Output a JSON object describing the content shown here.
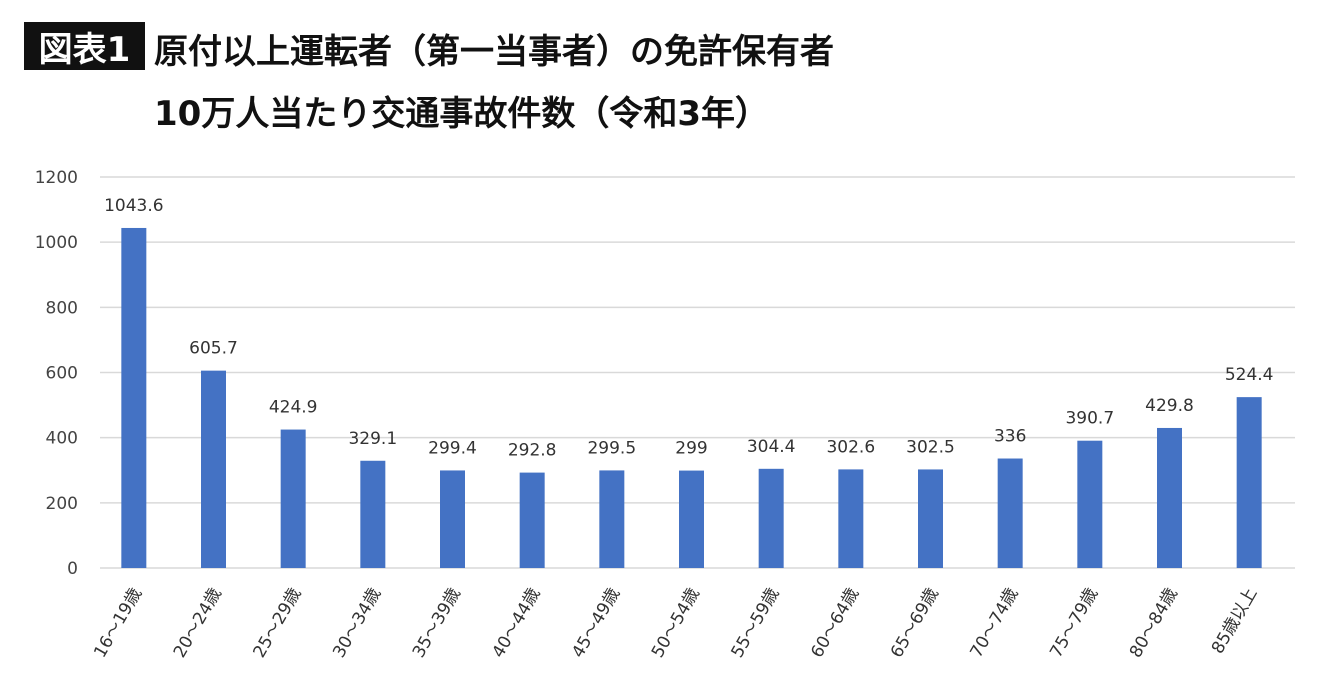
{
  "header": {
    "badge": "図表1",
    "title_line1": "原付以上運転者（第一当事者）の免許保有者",
    "title_line2": "10万人当たり交通事故件数（令和3年）"
  },
  "chart_data": {
    "type": "bar",
    "title": "原付以上運転者（第一当事者）の免許保有者 10万人当たり交通事故件数（令和3年）",
    "categories": [
      "16～19歳",
      "20～24歳",
      "25～29歳",
      "30～34歳",
      "35～39歳",
      "40～44歳",
      "45～49歳",
      "50～54歳",
      "55～59歳",
      "60～64歳",
      "65～69歳",
      "70～74歳",
      "75～79歳",
      "80～84歳",
      "85歳以上"
    ],
    "values": [
      1043.6,
      605.7,
      424.9,
      329.1,
      299.4,
      292.8,
      299.5,
      299,
      304.4,
      302.6,
      302.5,
      336,
      390.7,
      429.8,
      524.4
    ],
    "value_labels": [
      "1043.6",
      "605.7",
      "424.9",
      "329.1",
      "299.4",
      "292.8",
      "299.5",
      "299",
      "304.4",
      "302.6",
      "302.5",
      "336",
      "390.7",
      "429.8",
      "524.4"
    ],
    "yticks": [
      "0",
      "200",
      "400",
      "600",
      "800",
      "1000",
      "1200"
    ],
    "ylim": [
      0,
      1200
    ],
    "xlabel": "",
    "ylabel": "",
    "grid": true,
    "bar_color": "#4472C4"
  }
}
